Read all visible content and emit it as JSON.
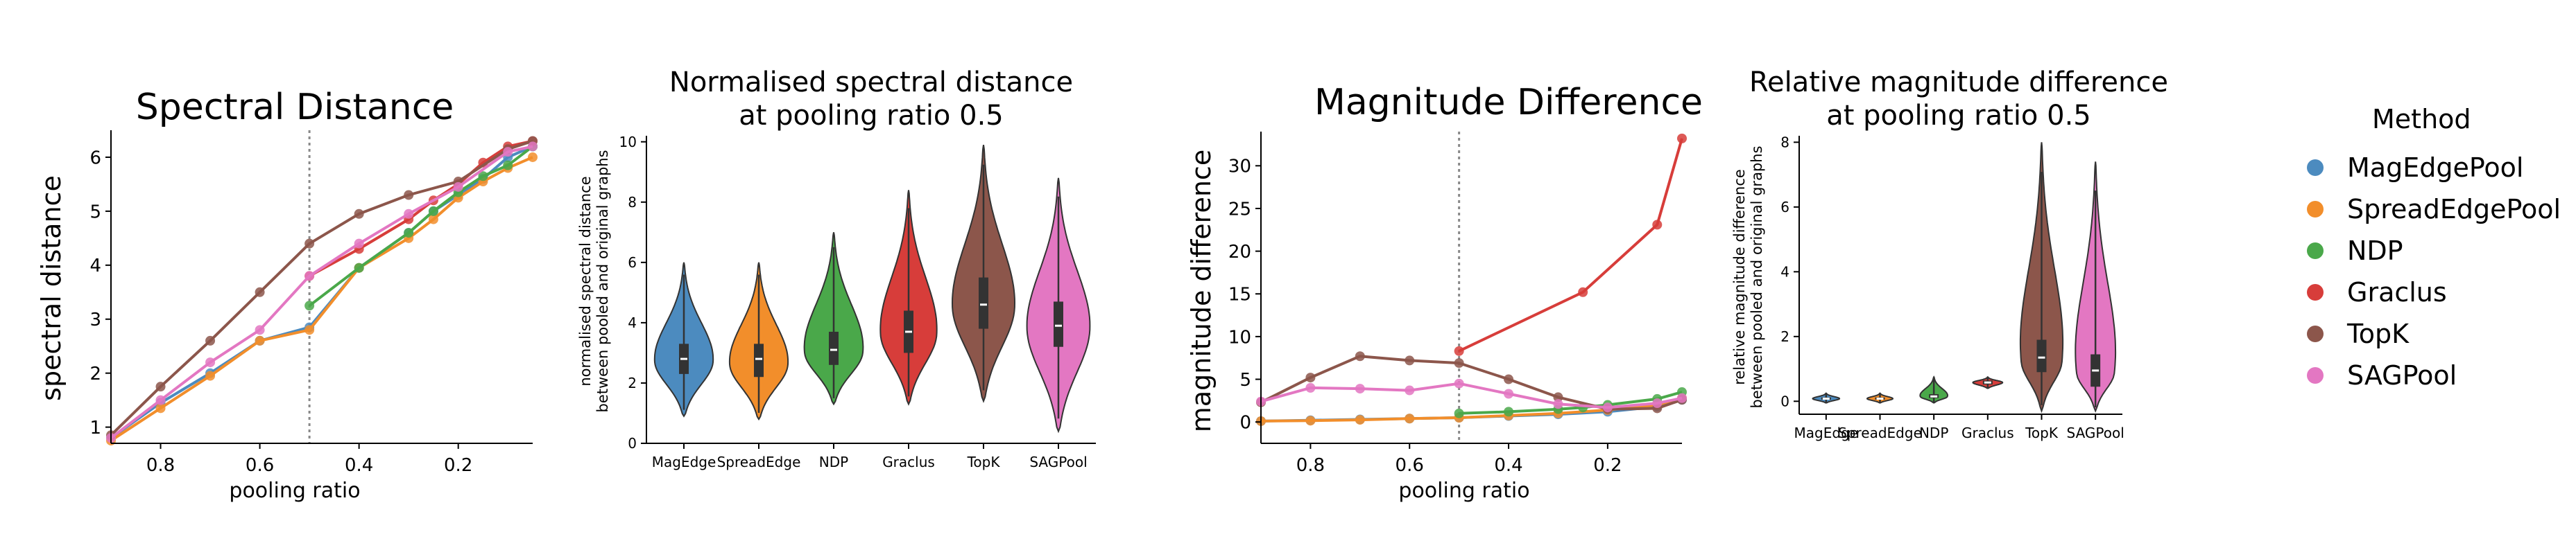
{
  "colors": {
    "MagEdgePool": "#4c8bbf",
    "SpreadEdgePool": "#f28e2b",
    "NDP": "#4aa84a",
    "Graclus": "#d73d3a",
    "TopK": "#8c564b",
    "SAGPool": "#e377c2"
  },
  "legend": {
    "title": "Method",
    "items": [
      {
        "label": "MagEdgePool",
        "color": "#4c8bbf"
      },
      {
        "label": "SpreadEdgePool",
        "color": "#f28e2b"
      },
      {
        "label": "NDP",
        "color": "#4aa84a"
      },
      {
        "label": "Graclus",
        "color": "#d73d3a"
      },
      {
        "label": "TopK",
        "color": "#8c564b"
      },
      {
        "label": "SAGPool",
        "color": "#e377c2"
      }
    ]
  },
  "chart_data": [
    {
      "id": "spectral",
      "type": "line",
      "title": "Spectral Distance",
      "xlabel": "pooling ratio",
      "ylabel": "spectral distance",
      "xlim": [
        0.9,
        0.05
      ],
      "ylim": [
        0.7,
        6.5
      ],
      "xticks": [
        0.8,
        0.6,
        0.4,
        0.2
      ],
      "xtick_labels": [
        "0.8",
        "0.6",
        "0.4",
        "0.2"
      ],
      "yticks": [
        1,
        2,
        3,
        4,
        5,
        6
      ],
      "ytick_labels": [
        "1",
        "2",
        "3",
        "4",
        "5",
        "6"
      ],
      "vline": 0.5,
      "series": [
        {
          "name": "MagEdgePool",
          "x": [
            0.9,
            0.8,
            0.7,
            0.6,
            0.5,
            0.4,
            0.3,
            0.25,
            0.2,
            0.15,
            0.1,
            0.05
          ],
          "y": [
            0.8,
            1.45,
            2.0,
            2.6,
            2.85,
            3.95,
            4.6,
            5.0,
            5.3,
            5.6,
            6.0,
            6.2
          ]
        },
        {
          "name": "SpreadEdgePool",
          "x": [
            0.9,
            0.8,
            0.7,
            0.6,
            0.5,
            0.4,
            0.3,
            0.25,
            0.2,
            0.15,
            0.1,
            0.05
          ],
          "y": [
            0.75,
            1.35,
            1.95,
            2.6,
            2.8,
            3.95,
            4.5,
            4.85,
            5.25,
            5.55,
            5.8,
            6.0
          ]
        },
        {
          "name": "NDP",
          "x": [
            0.5,
            0.4,
            0.3,
            0.25,
            0.2,
            0.15,
            0.1,
            0.05
          ],
          "y": [
            3.25,
            3.95,
            4.6,
            5.0,
            5.35,
            5.65,
            5.85,
            6.2
          ]
        },
        {
          "name": "Graclus",
          "x": [
            0.5,
            0.4,
            0.3,
            0.25,
            0.2,
            0.15,
            0.1,
            0.05
          ],
          "y": [
            3.8,
            4.3,
            4.85,
            5.2,
            5.5,
            5.9,
            6.2,
            6.3
          ]
        },
        {
          "name": "TopK",
          "x": [
            0.9,
            0.8,
            0.7,
            0.6,
            0.5,
            0.4,
            0.3,
            0.2,
            0.1,
            0.05
          ],
          "y": [
            0.85,
            1.75,
            2.6,
            3.5,
            4.4,
            4.95,
            5.3,
            5.55,
            6.15,
            6.3
          ]
        },
        {
          "name": "SAGPool",
          "x": [
            0.9,
            0.8,
            0.7,
            0.6,
            0.5,
            0.4,
            0.3,
            0.2,
            0.1,
            0.05
          ],
          "y": [
            0.8,
            1.5,
            2.2,
            2.8,
            3.8,
            4.4,
            4.95,
            5.45,
            6.1,
            6.2
          ]
        }
      ]
    },
    {
      "id": "norm-spectral",
      "type": "violin",
      "title": "Normalised spectral distance",
      "title2": "at pooling ratio 0.5",
      "xlabel": "",
      "ylabel": "normalised spectral distance",
      "ylabel2": "between pooled and original graphs",
      "ylim": [
        0,
        10.2
      ],
      "yticks": [
        0,
        2,
        4,
        6,
        8,
        10
      ],
      "ytick_labels": [
        "0",
        "2",
        "4",
        "6",
        "8",
        "10"
      ],
      "categories": [
        "MagEdge",
        "SpreadEdge",
        "NDP",
        "Graclus",
        "TopK",
        "SAGPool"
      ],
      "violins": [
        {
          "name": "MagEdge",
          "min": 0.9,
          "max": 6.0,
          "q1": 2.3,
          "median": 2.8,
          "q3": 3.3,
          "mode": 2.7,
          "width": 0.8
        },
        {
          "name": "SpreadEdge",
          "min": 0.8,
          "max": 6.0,
          "q1": 2.2,
          "median": 2.8,
          "q3": 3.3,
          "mode": 2.6,
          "width": 0.8
        },
        {
          "name": "NDP",
          "min": 1.3,
          "max": 7.0,
          "q1": 2.6,
          "median": 3.1,
          "q3": 3.7,
          "mode": 3.0,
          "width": 0.82
        },
        {
          "name": "Graclus",
          "min": 1.3,
          "max": 8.4,
          "q1": 3.0,
          "median": 3.7,
          "q3": 4.4,
          "mode": 3.6,
          "width": 0.78
        },
        {
          "name": "TopK",
          "min": 1.4,
          "max": 9.9,
          "q1": 3.8,
          "median": 4.6,
          "q3": 5.5,
          "mode": 4.5,
          "width": 0.85
        },
        {
          "name": "SAGPool",
          "min": 0.4,
          "max": 8.8,
          "q1": 3.2,
          "median": 3.9,
          "q3": 4.7,
          "mode": 3.8,
          "width": 0.85
        }
      ]
    },
    {
      "id": "magnitude",
      "type": "line",
      "title": "Magnitude Difference",
      "xlabel": "pooling ratio",
      "ylabel": "magnitude difference",
      "xlim": [
        0.9,
        0.05
      ],
      "ylim": [
        -2.5,
        34
      ],
      "xticks": [
        0.8,
        0.6,
        0.4,
        0.2
      ],
      "xtick_labels": [
        "0.8",
        "0.6",
        "0.4",
        "0.2"
      ],
      "yticks": [
        0,
        5,
        10,
        15,
        20,
        25,
        30
      ],
      "ytick_labels": [
        "0",
        "5",
        "10",
        "15",
        "20",
        "25",
        "30"
      ],
      "vline": 0.5,
      "series": [
        {
          "name": "MagEdgePool",
          "x": [
            0.9,
            0.8,
            0.7,
            0.6,
            0.5,
            0.4,
            0.3,
            0.2,
            0.1,
            0.05
          ],
          "y": [
            0.1,
            0.2,
            0.3,
            0.4,
            0.5,
            0.7,
            0.9,
            1.2,
            1.8,
            2.6
          ]
        },
        {
          "name": "SpreadEdgePool",
          "x": [
            0.9,
            0.8,
            0.7,
            0.6,
            0.5,
            0.4,
            0.3,
            0.2,
            0.1,
            0.05
          ],
          "y": [
            0.1,
            0.15,
            0.25,
            0.4,
            0.5,
            0.75,
            1.0,
            1.4,
            2.0,
            2.8
          ]
        },
        {
          "name": "NDP",
          "x": [
            0.5,
            0.4,
            0.3,
            0.25,
            0.2,
            0.1,
            0.05
          ],
          "y": [
            1.0,
            1.2,
            1.5,
            1.7,
            2.0,
            2.7,
            3.5
          ]
        },
        {
          "name": "Graclus",
          "x": [
            0.5,
            0.25,
            0.1,
            0.05
          ],
          "y": [
            8.3,
            15.2,
            23.1,
            33.2
          ]
        },
        {
          "name": "TopK",
          "x": [
            0.9,
            0.8,
            0.7,
            0.6,
            0.5,
            0.4,
            0.3,
            0.2,
            0.1,
            0.05
          ],
          "y": [
            2.3,
            5.2,
            7.7,
            7.2,
            6.9,
            5.0,
            2.9,
            1.5,
            1.6,
            2.6
          ]
        },
        {
          "name": "SAGPool",
          "x": [
            0.9,
            0.8,
            0.7,
            0.6,
            0.5,
            0.4,
            0.3,
            0.2,
            0.1,
            0.05
          ],
          "y": [
            2.4,
            4.0,
            3.9,
            3.7,
            4.5,
            3.3,
            2.1,
            1.7,
            2.2,
            2.8
          ]
        }
      ]
    },
    {
      "id": "rel-magnitude",
      "type": "violin",
      "title": "Relative magnitude difference",
      "title2": "at pooling ratio 0.5",
      "xlabel": "",
      "ylabel": "relative magnitude difference",
      "ylabel2": "between pooled and original graphs",
      "ylim": [
        -0.4,
        8.2
      ],
      "yticks": [
        0,
        2,
        4,
        6,
        8
      ],
      "ytick_labels": [
        "0",
        "2",
        "4",
        "6",
        "8"
      ],
      "categories": [
        "MagEdge",
        "SpreadEdge",
        "NDP",
        "Graclus",
        "TopK",
        "SAGPool"
      ],
      "violins": [
        {
          "name": "MagEdge",
          "min": -0.05,
          "max": 0.25,
          "q1": 0.05,
          "median": 0.08,
          "q3": 0.12,
          "mode": 0.08,
          "width": 0.5
        },
        {
          "name": "SpreadEdge",
          "min": -0.05,
          "max": 0.25,
          "q1": 0.05,
          "median": 0.08,
          "q3": 0.12,
          "mode": 0.08,
          "width": 0.48
        },
        {
          "name": "NDP",
          "min": -0.05,
          "max": 0.75,
          "q1": 0.1,
          "median": 0.15,
          "q3": 0.22,
          "mode": 0.14,
          "width": 0.55
        },
        {
          "name": "Graclus",
          "min": 0.4,
          "max": 0.75,
          "q1": 0.52,
          "median": 0.58,
          "q3": 0.64,
          "mode": 0.58,
          "width": 0.55
        },
        {
          "name": "TopK",
          "min": -0.3,
          "max": 8.0,
          "q1": 0.9,
          "median": 1.35,
          "q3": 1.9,
          "mode": 1.2,
          "width": 0.88
        },
        {
          "name": "SAGPool",
          "min": -0.3,
          "max": 7.4,
          "q1": 0.45,
          "median": 0.95,
          "q3": 1.45,
          "mode": 0.85,
          "width": 0.85
        }
      ]
    }
  ]
}
